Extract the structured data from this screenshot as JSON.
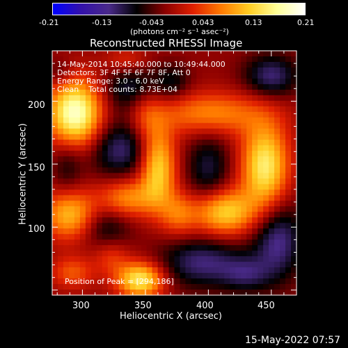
{
  "colorbar": {
    "tick_labels": [
      "-0.21",
      "-0.13",
      "-0.043",
      "0.043",
      "0.13",
      "0.21"
    ],
    "units": "(photons cm⁻² s⁻¹ asec⁻²)",
    "range": [
      -0.21,
      0.21
    ],
    "colormap": [
      "#0000ff",
      "#3311aa",
      "#4a2a8a",
      "#000000",
      "#8a0000",
      "#e02000",
      "#ff7a00",
      "#ffcc22",
      "#ffff99",
      "#ffffff"
    ]
  },
  "title": "Reconstructed RHESSI Image",
  "info": {
    "time": "14-May-2014 10:45:40.000 to 10:49:44.000",
    "detectors": "Detectors: 3F 4F 5F 6F 7F 8F, Att 0",
    "energy": "Energy Range: 3.0 - 6.0 keV",
    "clean": "Clean    Total counts: 8.73E+04",
    "peak": "Position of Peak = [294,186]"
  },
  "footer_timestamp": "15-May-2022 07:57",
  "chart_data": {
    "type": "heatmap",
    "title": "Reconstructed RHESSI Image",
    "xlabel": "Heliocentric X (arcsec)",
    "ylabel": "Heliocentric Y (arcsec)",
    "xlim": [
      276,
      470
    ],
    "ylim": [
      46,
      240
    ],
    "x_ticks": [
      300,
      350,
      400,
      450
    ],
    "y_ticks": [
      100,
      150,
      200
    ],
    "value_range": [
      -0.21,
      0.21
    ],
    "peak": [
      294,
      186
    ],
    "blobs": [
      {
        "x": 294,
        "y": 190,
        "value": 0.21,
        "sx": 15,
        "sy": 19
      },
      {
        "x": 360,
        "y": 148,
        "value": 0.15,
        "sx": 10,
        "sy": 22
      },
      {
        "x": 336,
        "y": 123,
        "value": 0.1,
        "sx": 16,
        "sy": 11
      },
      {
        "x": 346,
        "y": 58,
        "value": 0.17,
        "sx": 13,
        "sy": 10
      },
      {
        "x": 402,
        "y": 190,
        "value": 0.1,
        "sx": 30,
        "sy": 12
      },
      {
        "x": 445,
        "y": 148,
        "value": 0.17,
        "sx": 13,
        "sy": 24
      },
      {
        "x": 412,
        "y": 112,
        "value": 0.15,
        "sx": 18,
        "sy": 13
      },
      {
        "x": 290,
        "y": 110,
        "value": 0.13,
        "sx": 15,
        "sy": 14
      },
      {
        "x": 292,
        "y": 64,
        "value": 0.07,
        "sx": 12,
        "sy": 9
      },
      {
        "x": 323,
        "y": 76,
        "value": 0.05,
        "sx": 10,
        "sy": 10
      },
      {
        "x": 350,
        "y": 192,
        "value": 0.06,
        "sx": 10,
        "sy": 16
      },
      {
        "x": 376,
        "y": 110,
        "value": 0.07,
        "sx": 10,
        "sy": 12
      },
      {
        "x": 335,
        "y": 232,
        "value": 0.05,
        "sx": 12,
        "sy": 8
      },
      {
        "x": 330,
        "y": 162,
        "value": -0.09,
        "sx": 18,
        "sy": 16
      },
      {
        "x": 340,
        "y": 210,
        "value": -0.08,
        "sx": 16,
        "sy": 14
      },
      {
        "x": 288,
        "y": 150,
        "value": -0.05,
        "sx": 9,
        "sy": 18
      },
      {
        "x": 318,
        "y": 100,
        "value": -0.06,
        "sx": 14,
        "sy": 12
      },
      {
        "x": 400,
        "y": 145,
        "value": -0.07,
        "sx": 12,
        "sy": 22
      },
      {
        "x": 395,
        "y": 72,
        "value": -0.09,
        "sx": 24,
        "sy": 14
      },
      {
        "x": 450,
        "y": 220,
        "value": -0.09,
        "sx": 15,
        "sy": 12
      },
      {
        "x": 455,
        "y": 90,
        "value": -0.1,
        "sx": 14,
        "sy": 22
      },
      {
        "x": 372,
        "y": 215,
        "value": -0.05,
        "sx": 10,
        "sy": 10
      },
      {
        "x": 430,
        "y": 62,
        "value": -0.06,
        "sx": 14,
        "sy": 10
      },
      {
        "x": 282,
        "y": 222,
        "value": -0.04,
        "sx": 8,
        "sy": 8
      }
    ],
    "background": -0.02
  }
}
